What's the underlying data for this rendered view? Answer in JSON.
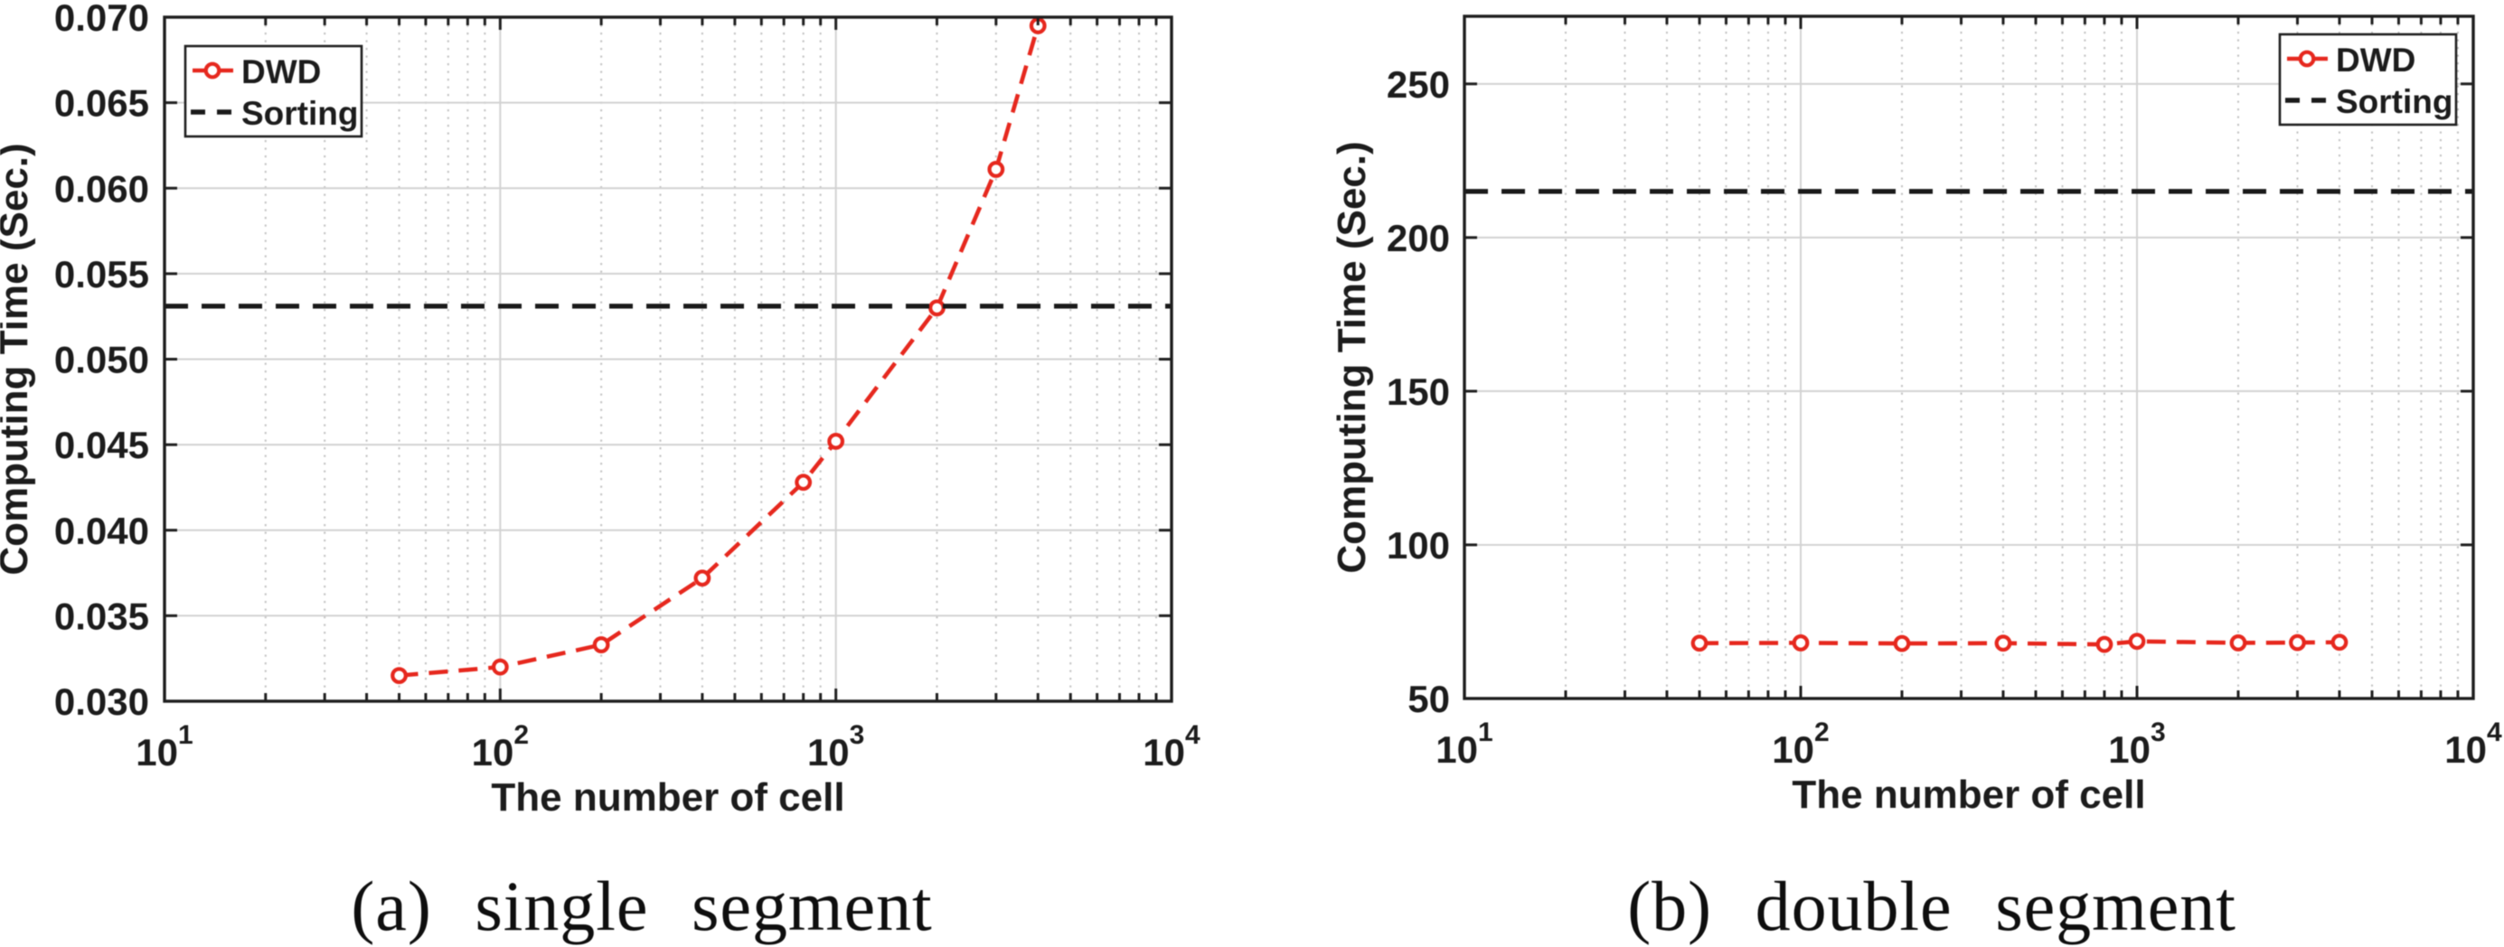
{
  "figure": {
    "background": "#ffffff",
    "caption_a": "(a) single segment",
    "caption_b": "(b) double segment"
  },
  "style": {
    "dwd_red": "#e6281e",
    "sorting_black": "#1a1a1a",
    "axis_color": "#1f1f1f",
    "grid_major_color": "#d2d2d2",
    "grid_minor_color": "#c2c2c2",
    "text_color": "#1c1c1c",
    "legend_bg": "#ffffff"
  },
  "chart_data": [
    {
      "type": "line",
      "title": "",
      "caption": "(a) single segment",
      "xlabel": "The number of cell",
      "ylabel": "Computing Time (Sec.)",
      "x_scale": "log10",
      "xlim": [
        10,
        10000
      ],
      "x_major_ticks": [
        10,
        100,
        1000,
        10000
      ],
      "x_tick_exponents": [
        "1",
        "2",
        "3",
        "4"
      ],
      "x_tick_base": "10",
      "ylim": [
        0.03,
        0.07
      ],
      "y_ticks": [
        0.03,
        0.035,
        0.04,
        0.045,
        0.05,
        0.055,
        0.06,
        0.065,
        0.07
      ],
      "y_tick_labels": [
        "0.030",
        "0.035",
        "0.040",
        "0.045",
        "0.050",
        "0.055",
        "0.060",
        "0.065",
        "0.070"
      ],
      "grid": true,
      "minor_grid": true,
      "legend_position": "northwest",
      "x": [
        50,
        100,
        200,
        400,
        800,
        1000,
        2000,
        3000,
        4000
      ],
      "series": [
        {
          "name": "DWD",
          "line": "dashed",
          "marker": "circle",
          "values": [
            0.0315,
            0.032,
            0.0333,
            0.0372,
            0.0428,
            0.0452,
            0.053,
            0.0611,
            0.0695
          ]
        },
        {
          "name": "Sorting",
          "line": "dashed",
          "marker": "none",
          "constant": 0.0531
        }
      ]
    },
    {
      "type": "line",
      "title": "",
      "caption": "(b) double segment",
      "xlabel": "The number of cell",
      "ylabel": "Computing Time (Sec.)",
      "x_scale": "log10",
      "xlim": [
        10,
        10000
      ],
      "x_major_ticks": [
        10,
        100,
        1000,
        10000
      ],
      "x_tick_exponents": [
        "1",
        "2",
        "3",
        "4"
      ],
      "x_tick_base": "10",
      "ylim": [
        50,
        272
      ],
      "y_ticks": [
        50,
        100,
        150,
        200,
        250
      ],
      "y_tick_labels": [
        "50",
        "100",
        "150",
        "200",
        "250"
      ],
      "grid": true,
      "minor_grid": true,
      "legend_position": "northeast",
      "x": [
        50,
        100,
        200,
        400,
        800,
        1000,
        2000,
        3000,
        4000
      ],
      "series": [
        {
          "name": "DWD",
          "line": "dashed",
          "marker": "circle",
          "values": [
            68.0,
            68.1,
            67.9,
            68.0,
            67.6,
            68.6,
            68.1,
            68.2,
            68.3
          ]
        },
        {
          "name": "Sorting",
          "line": "dashed",
          "marker": "none",
          "constant": 215
        }
      ]
    }
  ]
}
